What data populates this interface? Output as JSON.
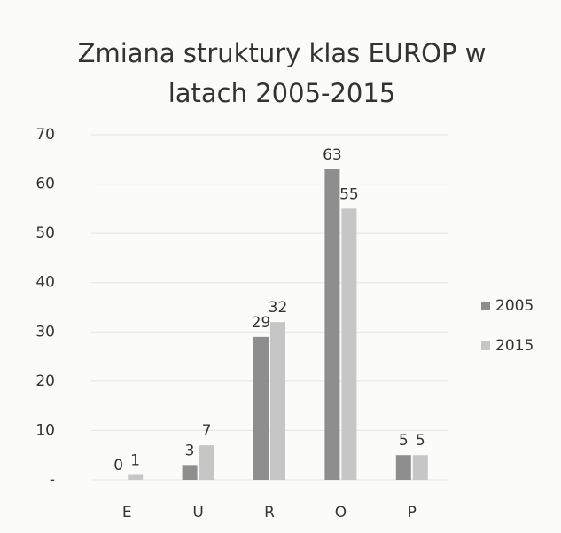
{
  "chart_data": {
    "type": "bar",
    "title": "Zmiana struktury klas EUROP w latach 2005-2015",
    "categories": [
      "E",
      "U",
      "R",
      "O",
      "P"
    ],
    "series": [
      {
        "name": "2005",
        "color": "#8e8e8e",
        "values": [
          0,
          3,
          29,
          63,
          5
        ]
      },
      {
        "name": "2015",
        "color": "#c6c6c6",
        "values": [
          1,
          7,
          32,
          55,
          5
        ]
      }
    ],
    "ylim": [
      0,
      70
    ],
    "yticks": [
      {
        "value": 0,
        "label": "-"
      },
      10,
      20,
      30,
      40,
      50,
      60,
      70
    ],
    "grid": true,
    "legend": "right"
  }
}
